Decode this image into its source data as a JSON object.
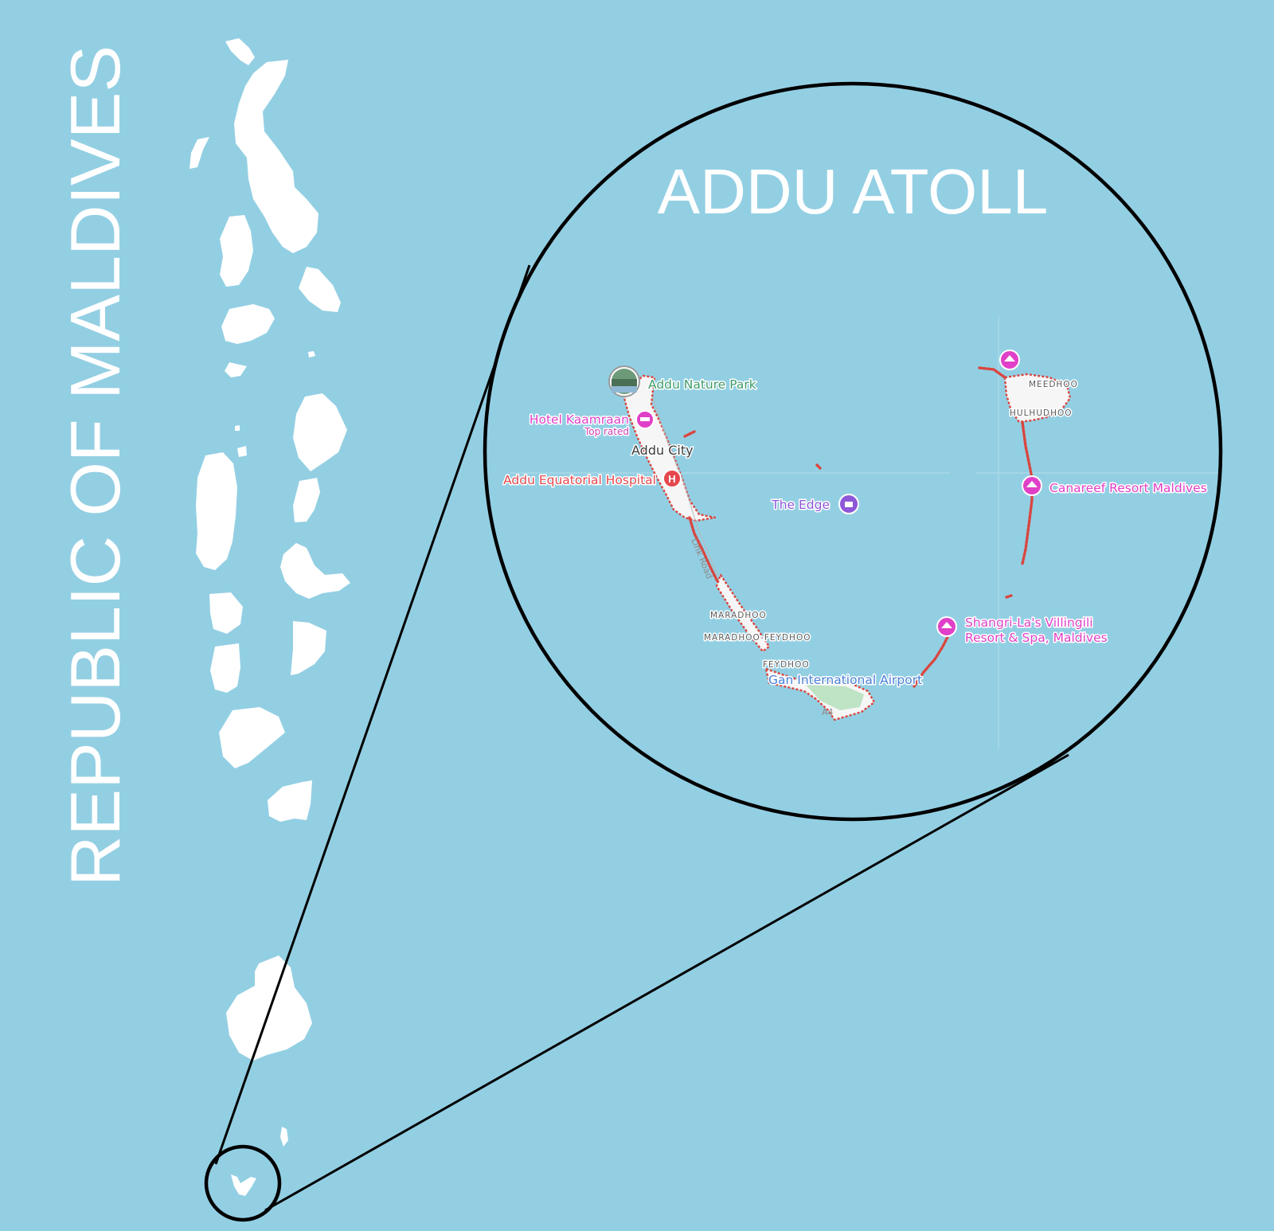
{
  "title": "ADDU ATOLL",
  "country_label": "REPUBLIC OF MALDIVES",
  "colors": {
    "water": "#93cfe3",
    "land": "#ffffff",
    "reef_outline": "#d9463f",
    "poi_pink": "#e040c8",
    "poi_red": "#e5484d",
    "poi_green": "#3e9b6b",
    "poi_purple": "#8e57d8",
    "poi_blue": "#4a7fd6"
  },
  "places": {
    "park": "Addu Nature Park",
    "hotel": "Hotel Kaamraan",
    "hotel_badge": "Top rated",
    "city": "Addu City",
    "hospital": "Addu Equatorial Hospital",
    "edge": "The Edge",
    "canareef": "Canareef Resort Maldives",
    "shangri_1": "Shangri-La's Villingili",
    "shangri_2": "Resort & Spa, Maldives",
    "airport": "Gan International Airport"
  },
  "islands": {
    "meedhoo": "MEEDHOO",
    "hulhudhoo": "HULHUDHOO",
    "maradhoo": "MARADHOO",
    "maradhoo_feydhoo": "MARADHOO-FEYDHOO",
    "feydhoo": "FEYDHOO"
  },
  "road": "Link Road",
  "road_shield": "A4",
  "icons": {
    "park": "park-photo-icon",
    "hotel": "hotel-bed-icon",
    "hospital": "hospital-h-icon",
    "edge": "attraction-icon",
    "resort": "resort-umbrella-icon"
  }
}
